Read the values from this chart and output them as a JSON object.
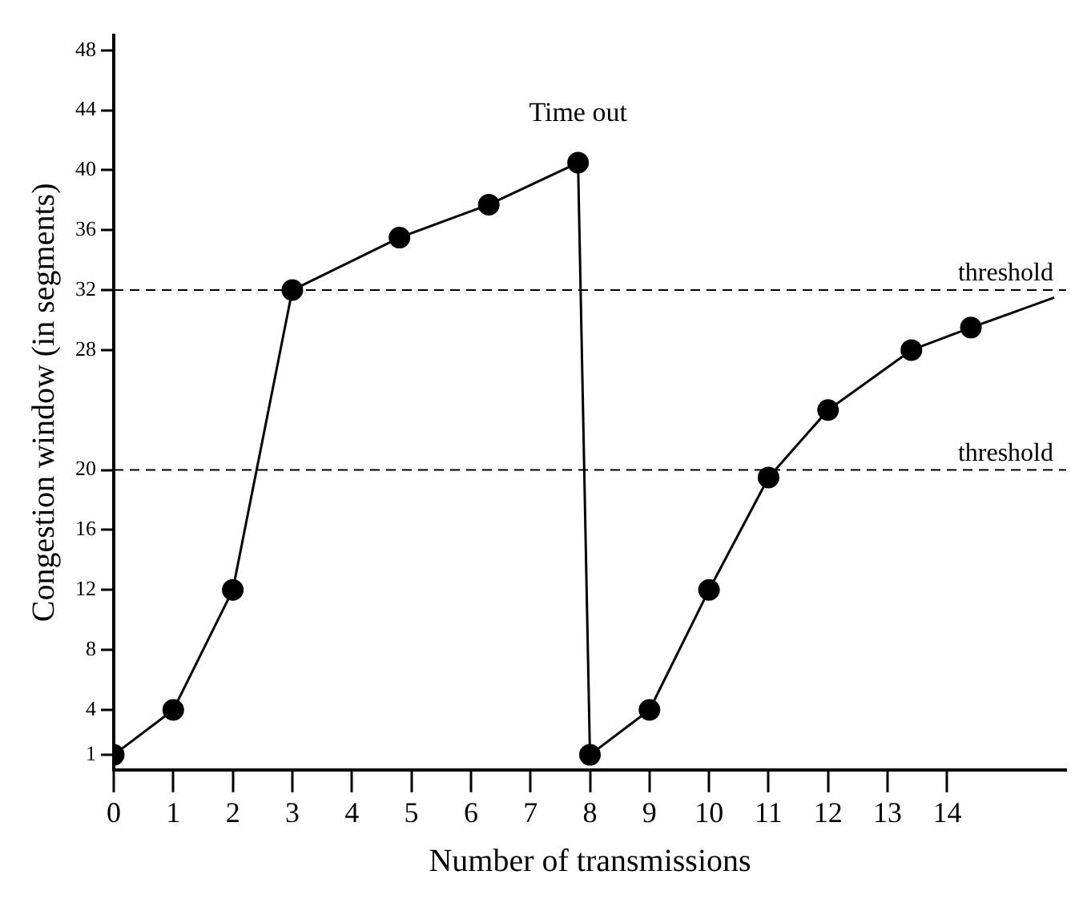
{
  "chart_data": {
    "type": "line",
    "xlabel": "Number of transmissions",
    "ylabel": "Congestion window (in segments)",
    "series": [
      {
        "color": "#000000",
        "marker": "circle",
        "x": [
          0,
          1,
          2,
          3,
          4.8,
          6.3,
          7.8,
          8,
          9,
          10,
          11,
          12,
          13.4,
          14.4
        ],
        "values": [
          1,
          4,
          12,
          32,
          35.5,
          37.7,
          40.5,
          1,
          4,
          12,
          19.5,
          24,
          28,
          29.5
        ]
      },
      {
        "color": "#000000",
        "marker": "none",
        "x": [
          14.4,
          15.8
        ],
        "values": [
          29.5,
          31.5
        ]
      }
    ],
    "xlim": [
      0,
      16
    ],
    "xticks": [
      0,
      1,
      2,
      3,
      4,
      5,
      6,
      7,
      8,
      9,
      10,
      11,
      12,
      13,
      14
    ],
    "ylim": [
      0,
      49
    ],
    "yticks": [
      1,
      4,
      8,
      12,
      16,
      20,
      28,
      32,
      36,
      40,
      44,
      48
    ],
    "grid": false,
    "legend": false,
    "line_style": "solid",
    "ref_lines": [
      {
        "axis": "y",
        "value": 32,
        "label": "threshold",
        "line_style": "dashed",
        "color": "#000000"
      },
      {
        "axis": "y",
        "value": 20,
        "label": "threshold",
        "line_style": "dashed",
        "color": "#000000"
      }
    ],
    "annotations": [
      {
        "text": "Time out",
        "x": 7.8,
        "y": 40.5
      }
    ]
  }
}
